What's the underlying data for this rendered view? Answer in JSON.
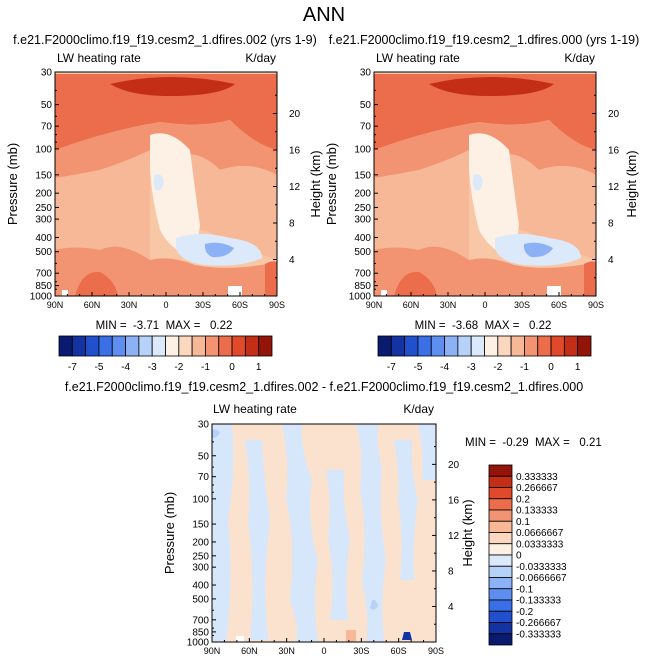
{
  "figure_title": "ANN",
  "colors": {
    "level_fills": [
      "#0a1a6e",
      "#1433a3",
      "#2150cc",
      "#3a6fe6",
      "#5e8ff0",
      "#8cb2f5",
      "#b7d2f8",
      "#dce9fb",
      "#fdf0e4",
      "#fbd7bf",
      "#f7b898",
      "#f29472",
      "#ec6d4b",
      "#e04a2a",
      "#c42e16",
      "#93150a"
    ],
    "diff_fills": [
      "#0a1a6e",
      "#1433a3",
      "#2150cc",
      "#3a6fe6",
      "#5e8ff0",
      "#8cb2f5",
      "#b7d2f8",
      "#dce9fb",
      "#fdf0e4",
      "#fbd7bf",
      "#f7b898",
      "#f29472",
      "#ec6d4b",
      "#e04a2a",
      "#c42e16",
      "#93150a"
    ]
  },
  "panels": [
    {
      "title": "f.e21.F2000climo.f19_f19.cesm2_1.dfires.002 (yrs 1-9)",
      "left_label": "LW heating rate",
      "right_label": "K/day",
      "ylabel": "Pressure (mb)",
      "y2label": "Height (km)",
      "stats": "MIN =  -3.71  MAX =   0.22"
    },
    {
      "title": "f.e21.F2000climo.f19_f19.cesm2_1.dfires.000 (yrs 1-19)",
      "left_label": "LW heating rate",
      "right_label": "K/day",
      "ylabel": "Pressure (mb)",
      "y2label": "Height (km)",
      "stats": "MIN =  -3.68  MAX =   0.22"
    },
    {
      "title": "f.e21.F2000climo.f19_f19.cesm2_1.dfires.002 - f.e21.F2000climo.f19_f19.cesm2_1.dfires.000",
      "left_label": "LW heating rate",
      "right_label": "K/day",
      "ylabel": "Pressure (mb)",
      "y2label": "Height (km)",
      "stats": "MIN =  -0.29  MAX =   0.21"
    }
  ],
  "chart_data": [
    {
      "type": "heatmap",
      "title": "f.e21.F2000climo.f19_f19.cesm2_1.dfires.002 (yrs 1-9)",
      "x_ticks": [
        "90N",
        "60N",
        "30N",
        "0",
        "30S",
        "60S",
        "90S"
      ],
      "y_ticks": [
        "30",
        "50",
        "70",
        "100",
        "150",
        "200",
        "250",
        "300",
        "400",
        "500",
        "700",
        "850",
        "1000"
      ],
      "y2_ticks": [
        "20",
        "16",
        "12",
        "8",
        "4"
      ],
      "xlim": [
        90,
        -90
      ],
      "ylim": [
        1000,
        30
      ],
      "y_scale": "log",
      "variable": "LW heating rate",
      "units": "K/day",
      "min": -3.71,
      "max": 0.22
    },
    {
      "type": "heatmap",
      "title": "f.e21.F2000climo.f19_f19.cesm2_1.dfires.000 (yrs 1-19)",
      "x_ticks": [
        "90N",
        "60N",
        "30N",
        "0",
        "30S",
        "60S",
        "90S"
      ],
      "y_ticks": [
        "30",
        "50",
        "70",
        "100",
        "150",
        "200",
        "250",
        "300",
        "400",
        "500",
        "700",
        "850",
        "1000"
      ],
      "y2_ticks": [
        "20",
        "16",
        "12",
        "8",
        "4"
      ],
      "xlim": [
        90,
        -90
      ],
      "ylim": [
        1000,
        30
      ],
      "y_scale": "log",
      "variable": "LW heating rate",
      "units": "K/day",
      "min": -3.68,
      "max": 0.22
    },
    {
      "type": "heatmap",
      "title": "f.e21.F2000climo.f19_f19.cesm2_1.dfires.002 - f.e21.F2000climo.f19_f19.cesm2_1.dfires.000",
      "x_ticks": [
        "90N",
        "60N",
        "30N",
        "0",
        "30S",
        "60S",
        "90S"
      ],
      "y_ticks": [
        "30",
        "50",
        "70",
        "100",
        "150",
        "200",
        "250",
        "300",
        "400",
        "500",
        "700",
        "850",
        "1000"
      ],
      "y2_ticks": [
        "20",
        "16",
        "12",
        "8",
        "4"
      ],
      "xlim": [
        90,
        -90
      ],
      "ylim": [
        1000,
        30
      ],
      "y_scale": "log",
      "variable": "LW heating rate",
      "units": "K/day",
      "min": -0.29,
      "max": 0.21
    }
  ],
  "colorbar_top": {
    "levels": [
      -7,
      -6.5,
      -6,
      -5.5,
      -5,
      -4.5,
      -4,
      -3.5,
      -3,
      -2.5,
      -2,
      -1.5,
      -1,
      -0.5,
      0,
      0.5,
      1
    ],
    "labels": [
      "-7",
      "-5",
      "-4",
      "-3",
      "-2",
      "-1",
      "0",
      "1"
    ]
  },
  "colorbar_diff": {
    "labels": [
      "0.333333",
      "0.266667",
      "0.2",
      "0.133333",
      "0.1",
      "0.0666667",
      "0.0333333",
      "0",
      "-0.0333333",
      "-0.0666667",
      "-0.1",
      "-0.133333",
      "-0.2",
      "-0.266667",
      "-0.333333"
    ]
  }
}
